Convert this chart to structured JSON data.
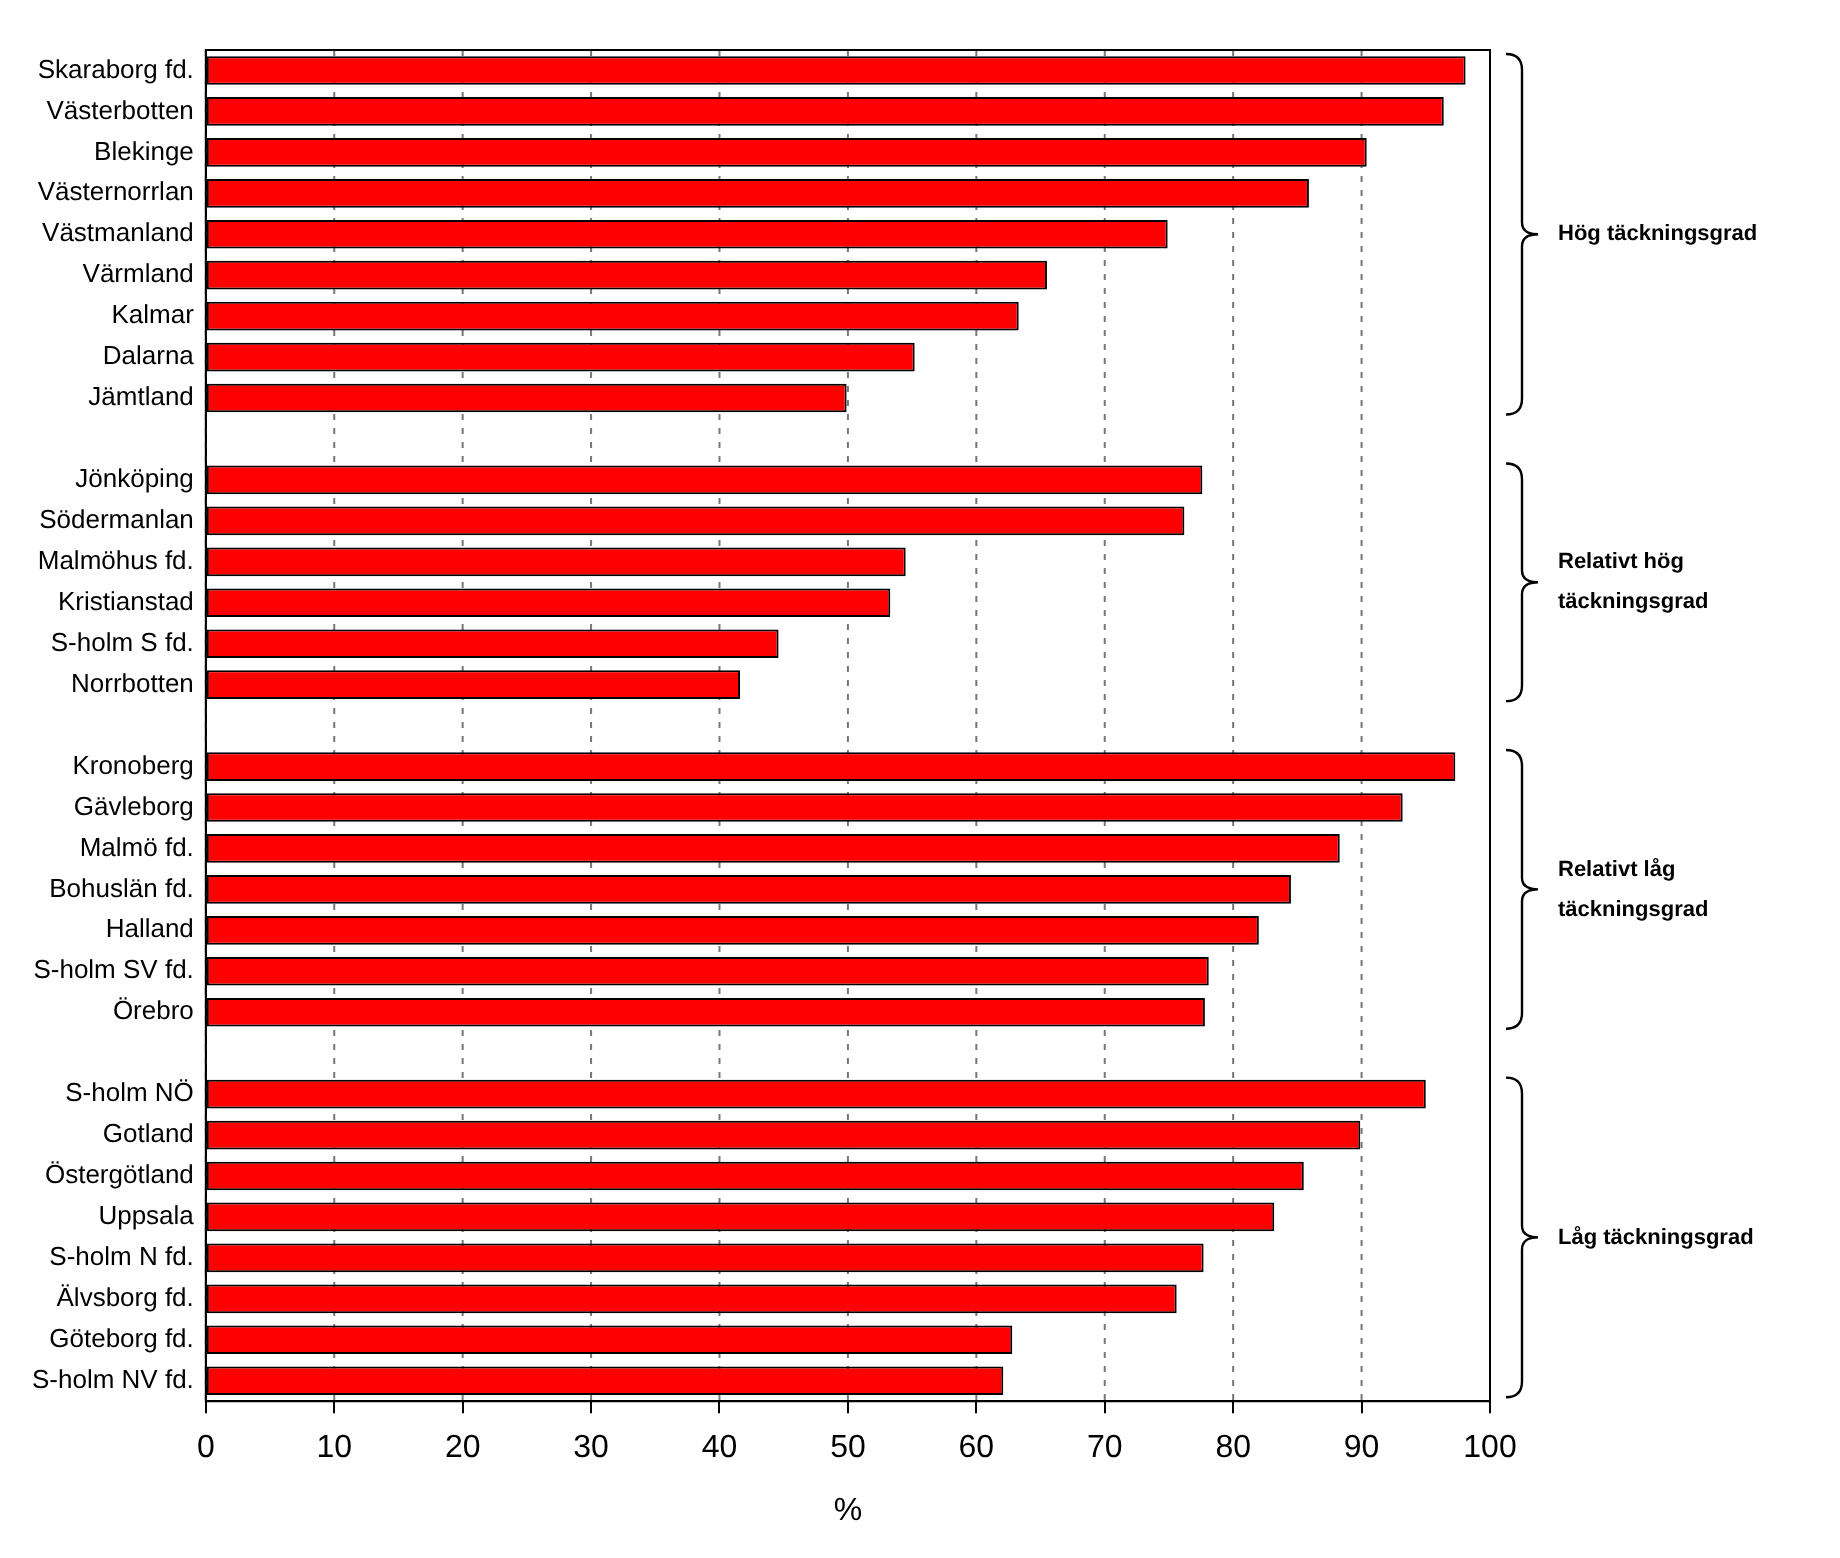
{
  "chart_data": {
    "type": "bar",
    "orientation": "horizontal",
    "xlabel": "%",
    "categories": [
      "Skaraborg fd.",
      "Västerbotten",
      "Blekinge",
      "Västernorrlan",
      "Västmanland",
      "Värmland",
      "Kalmar",
      "Dalarna",
      "Jämtland",
      null,
      "Jönköping",
      "Södermanlan",
      "Malmöhus fd.",
      "Kristianstad",
      "S-holm S fd.",
      "Norrbotten",
      null,
      "Kronoberg",
      "Gävleborg",
      "Malmö fd.",
      "Bohuslän fd.",
      "Halland",
      "S-holm SV fd.",
      "Örebro",
      null,
      "S-holm NÖ",
      "Gotland",
      "Östergötland",
      "Uppsala",
      "S-holm N fd.",
      "Älvsborg fd.",
      "Göteborg fd.",
      "S-holm NV fd."
    ],
    "values": [
      98.1,
      96.4,
      90.4,
      85.9,
      74.9,
      65.5,
      63.3,
      55.2,
      49.9,
      null,
      77.6,
      76.2,
      54.5,
      53.3,
      44.6,
      41.6,
      null,
      97.3,
      93.2,
      88.3,
      84.5,
      82.0,
      78.1,
      77.8,
      null,
      95.0,
      89.9,
      85.5,
      83.2,
      77.7,
      75.6,
      62.8,
      62.1
    ],
    "color": "#ff0000",
    "xlim": [
      0,
      100
    ],
    "xticks": [
      0,
      10,
      20,
      30,
      40,
      50,
      60,
      70,
      80,
      90,
      100
    ],
    "grid": "x",
    "legend": false,
    "annotations": [
      "Hög täckningsgrad",
      "Relativt hög\ntäckningsgrad",
      "Relativt låg\ntäckningsgrad",
      "Låg täckningsgrad"
    ]
  }
}
